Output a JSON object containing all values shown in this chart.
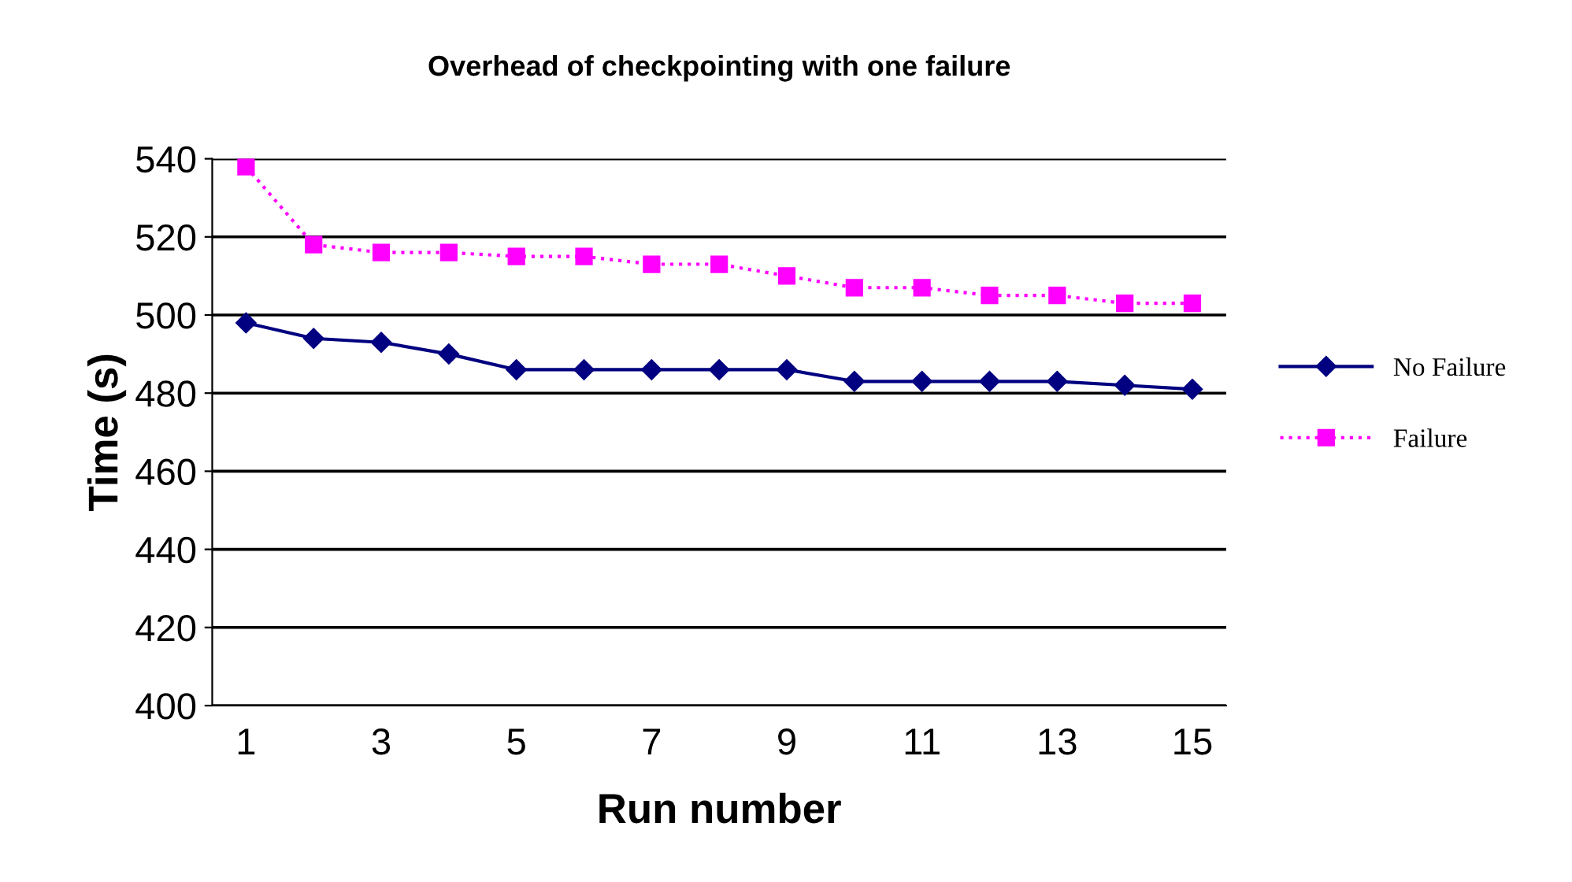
{
  "chart_data": {
    "type": "line",
    "title": "Overhead of checkpointing with one failure",
    "xlabel": "Run number",
    "ylabel": "Time (s)",
    "categories": [
      "1",
      null,
      "3",
      null,
      "5",
      null,
      "7",
      null,
      "9",
      null,
      "11",
      null,
      "13",
      null,
      "15"
    ],
    "series": [
      {
        "name": "No Failure",
        "color": "#000080",
        "marker": "diamond",
        "line_style": "solid",
        "values": [
          498,
          494,
          493,
          490,
          486,
          486,
          486,
          486,
          486,
          483,
          483,
          483,
          483,
          482,
          481
        ]
      },
      {
        "name": "Failure",
        "color": "#ff00ff",
        "marker": "square",
        "line_style": "dotted",
        "values": [
          538,
          518,
          516,
          516,
          515,
          515,
          513,
          513,
          510,
          507,
          507,
          505,
          505,
          503,
          503
        ]
      }
    ],
    "ylim": [
      400,
      540
    ],
    "yticks": [
      400,
      420,
      440,
      460,
      480,
      500,
      520,
      540
    ],
    "grid": "y",
    "legend": "right"
  }
}
